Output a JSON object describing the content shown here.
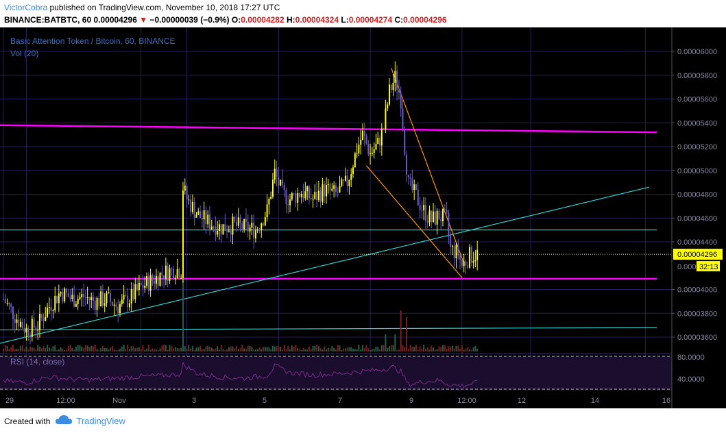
{
  "header": {
    "author": "VictorCobra",
    "published_text": " published on TradingView.com, November 10, 2018 17:27 UTC",
    "symbol_text": "BINANCE:BATBTC, 60",
    "last": "0.00004296",
    "change": "−0.00000039 (−0.9%)",
    "open_label": "O:",
    "open": "0.00004282",
    "high_label": "H:",
    "high": "0.00004324",
    "low_label": "L:",
    "low": "0.00004274",
    "close_label": "C:",
    "close": "0.00004296"
  },
  "legend": {
    "title": "Basic Attention Token / Bitcoin, 60, BINANCE",
    "volume": "Vol (20)",
    "rsi": "RSI (14, close)"
  },
  "price_axis": {
    "labels": [
      "0.00006000",
      "0.00005800",
      "0.00005600",
      "0.00005400",
      "0.00005200",
      "0.00005000",
      "0.00004800",
      "0.00004600",
      "0.00004400",
      "0.00004000",
      "0.00003800",
      "0.00003600"
    ],
    "last_price_label": "0.00004296",
    "partial_label": "0.000",
    "countdown": "32:13"
  },
  "rsi_axis": {
    "labels": [
      "80.0000",
      "40.0000"
    ]
  },
  "time_axis": {
    "labels": [
      "29",
      "12:00",
      "Nov",
      "3",
      "5",
      "7",
      "9",
      "12:00",
      "12",
      "14",
      "16"
    ]
  },
  "footer": {
    "created_with": "Created with",
    "brand": "TradingView"
  },
  "colors": {
    "background": "#000000",
    "grid": "#2a1d5c",
    "bull_candle": "#ffff00",
    "bear_candle": "#6b5cc9",
    "magenta_line": "#ff00ff",
    "cyan_line": "#33cccc",
    "wedge_line": "#ff9900",
    "rsi_line": "#7b2a8a",
    "axis_text": "#8a8aa0"
  },
  "chart_data": {
    "type": "candlestick",
    "title": "Basic Attention Token / Bitcoin, 60, BINANCE",
    "x_unit": "hours from Oct 29 00:00",
    "ylim": [
      3.53e-05,
      6.16e-05
    ],
    "y_ticks": [
      3.6e-05,
      3.8e-05,
      4e-05,
      4.4e-05,
      4.6e-05,
      4.8e-05,
      5e-05,
      5.2e-05,
      5.4e-05,
      5.6e-05,
      5.8e-05,
      6e-05
    ],
    "price_path": [
      [
        0,
        3.92e-05
      ],
      [
        6,
        3.78e-05
      ],
      [
        12,
        3.66e-05
      ],
      [
        18,
        3.7e-05
      ],
      [
        24,
        3.86e-05
      ],
      [
        30,
        3.98e-05
      ],
      [
        36,
        3.92e-05
      ],
      [
        42,
        3.94e-05
      ],
      [
        48,
        3.9e-05
      ],
      [
        54,
        3.92e-05
      ],
      [
        60,
        3.86e-05
      ],
      [
        66,
        3.92e-05
      ],
      [
        72,
        4.02e-05
      ],
      [
        78,
        4.08e-05
      ],
      [
        84,
        4.14e-05
      ],
      [
        90,
        4.17e-05
      ],
      [
        93,
        4.16e-05
      ],
      [
        94,
        4.86e-05
      ],
      [
        96,
        4.76e-05
      ],
      [
        102,
        4.62e-05
      ],
      [
        108,
        4.56e-05
      ],
      [
        114,
        4.52e-05
      ],
      [
        120,
        4.54e-05
      ],
      [
        126,
        4.52e-05
      ],
      [
        132,
        4.5e-05
      ],
      [
        138,
        4.66e-05
      ],
      [
        142,
        4.98e-05
      ],
      [
        146,
        4.8e-05
      ],
      [
        150,
        4.76e-05
      ],
      [
        156,
        4.82e-05
      ],
      [
        162,
        4.76e-05
      ],
      [
        168,
        4.84e-05
      ],
      [
        174,
        4.8e-05
      ],
      [
        180,
        4.9e-05
      ],
      [
        185,
        5.18e-05
      ],
      [
        188,
        5.3e-05
      ],
      [
        192,
        5.14e-05
      ],
      [
        196,
        5.22e-05
      ],
      [
        199,
        5.36e-05
      ],
      [
        202,
        5.66e-05
      ],
      [
        205,
        5.78e-05
      ],
      [
        208,
        5.6e-05
      ],
      [
        210,
        5.2e-05
      ],
      [
        212,
        4.88e-05
      ],
      [
        216,
        4.78e-05
      ],
      [
        220,
        4.66e-05
      ],
      [
        224,
        4.58e-05
      ],
      [
        228,
        4.62e-05
      ],
      [
        232,
        4.58e-05
      ],
      [
        234,
        4.34e-05
      ],
      [
        238,
        4.3e-05
      ],
      [
        240,
        4.2e-05
      ],
      [
        244,
        4.28e-05
      ],
      [
        248,
        4.3e-05
      ]
    ],
    "lines": [
      {
        "name": "upper resistance",
        "color": "#ff00ff",
        "from": [
          -4,
          5.38e-05
        ],
        "to": [
          342,
          5.32e-05
        ]
      },
      {
        "name": "lower support",
        "color": "#ff00ff",
        "from": [
          -4,
          4.09e-05
        ],
        "to": [
          342,
          4.09e-05
        ]
      },
      {
        "name": "horizontal level",
        "color": "#33cccc",
        "from": [
          -4,
          4.5e-05
        ],
        "to": [
          342,
          4.5e-05
        ]
      },
      {
        "name": "lower horizontal level",
        "color": "#33cccc",
        "from": [
          -4,
          3.66e-05
        ],
        "to": [
          342,
          3.68e-05
        ]
      },
      {
        "name": "ascending trendline",
        "color": "#33cccc",
        "from": [
          -4,
          3.54e-05
        ],
        "to": [
          338,
          4.86e-05
        ]
      },
      {
        "name": "wedge upper",
        "color": "#ff9900",
        "from": [
          203,
          5.86e-05
        ],
        "to": [
          241,
          4.22e-05
        ]
      },
      {
        "name": "wedge lower",
        "color": "#ff9900",
        "from": [
          190,
          5.04e-05
        ],
        "to": [
          240,
          4.1e-05
        ]
      }
    ],
    "rsi": {
      "ylim": [
        30,
        90
      ],
      "levels": [
        70,
        30
      ],
      "values": [
        [
          0,
          45
        ],
        [
          12,
          42
        ],
        [
          24,
          52
        ],
        [
          36,
          48
        ],
        [
          48,
          47
        ],
        [
          60,
          50
        ],
        [
          72,
          53
        ],
        [
          84,
          55
        ],
        [
          93,
          58
        ],
        [
          94,
          75
        ],
        [
          102,
          58
        ],
        [
          114,
          52
        ],
        [
          126,
          50
        ],
        [
          138,
          55
        ],
        [
          142,
          72
        ],
        [
          150,
          60
        ],
        [
          162,
          56
        ],
        [
          174,
          58
        ],
        [
          186,
          62
        ],
        [
          196,
          65
        ],
        [
          204,
          70
        ],
        [
          208,
          62
        ],
        [
          212,
          38
        ],
        [
          220,
          44
        ],
        [
          228,
          46
        ],
        [
          234,
          38
        ],
        [
          240,
          36
        ],
        [
          248,
          42
        ]
      ]
    }
  }
}
